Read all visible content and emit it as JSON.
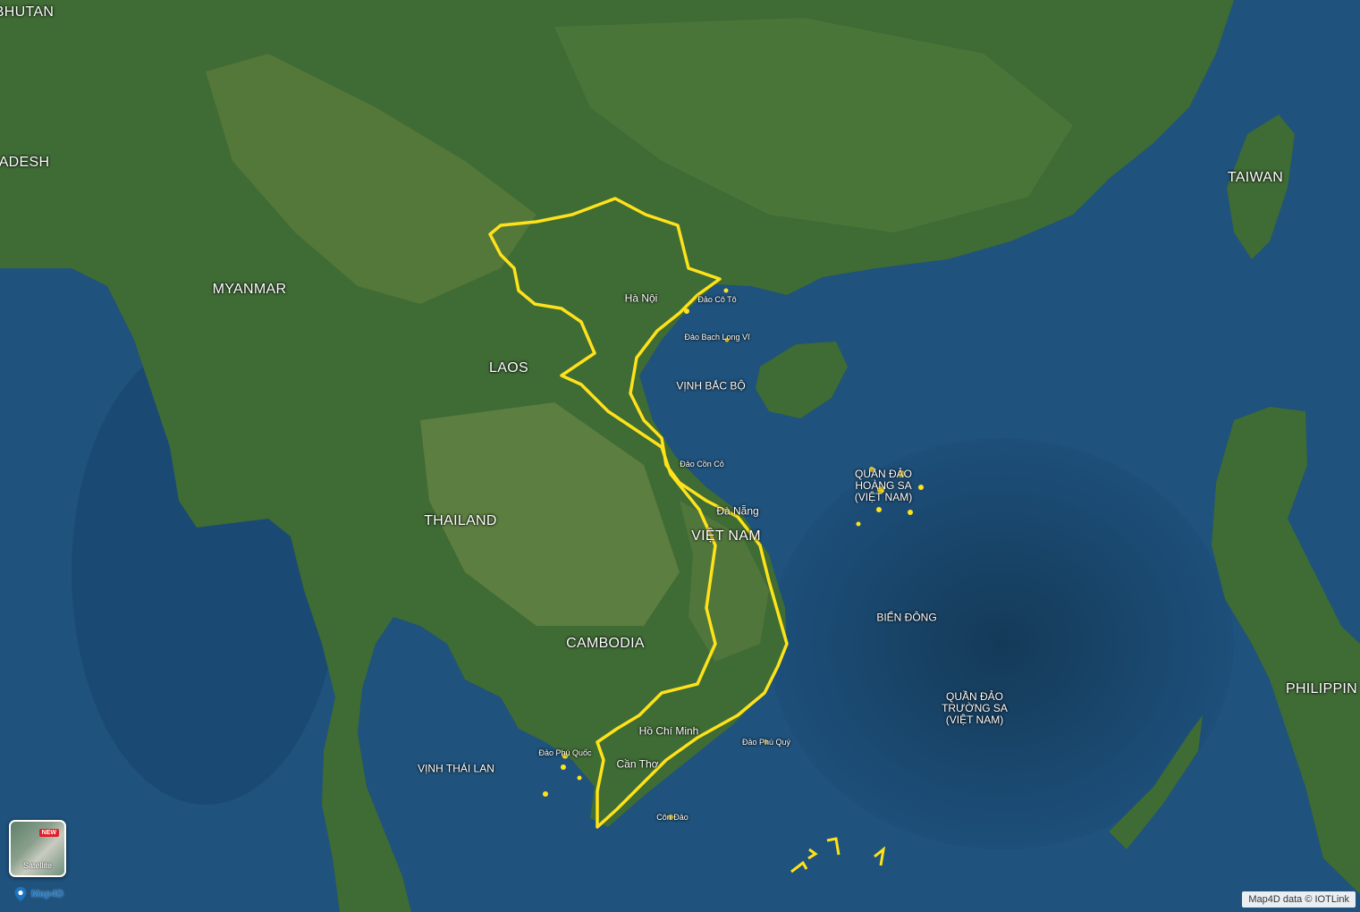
{
  "map": {
    "style": "satellite",
    "colors": {
      "sea": "#1d4f7a",
      "deep_sea": "#15405f",
      "land": "#3f6b35",
      "highland": "#5c7a3e",
      "border_highlight": "#ffe21a"
    },
    "labels": {
      "bhutan": "BHUTAN",
      "bangladesh": "ADESH",
      "myanmar": "MYANMAR",
      "laos": "LAOS",
      "thailand": "THAILAND",
      "cambodia": "CAMBODIA",
      "vietnam": "VIỆT NAM",
      "taiwan": "TAIWAN",
      "philippines": "PHILIPPIN",
      "gulf_tonkin": "VỊNH BẮC BỘ",
      "gulf_thailand": "VỊNH THÁI LAN",
      "east_sea": "BIỂN ĐÔNG",
      "hanoi": "Hà Nội",
      "da_nang": "Đà Nẵng",
      "ho_chi_minh": "Hồ Chí Minh",
      "can_tho": "Cần Thơ",
      "co_to": "Đảo Cô Tô",
      "bach_long_vi": "Đảo Bạch Long Vĩ",
      "con_co": "Đảo Cồn Cỏ",
      "phu_quy": "Đảo Phú Quý",
      "phu_quoc": "Đảo Phú Quốc",
      "con_dao": "Côn Đảo",
      "hoang_sa": "QUẦN ĐẢO\nHOÀNG SA\n(VIỆT NAM)",
      "truong_sa": "QUẦN ĐẢO\nTRƯỜNG SA\n(VIỆT NAM)"
    }
  },
  "controls": {
    "layer_switch": {
      "label": "Satellite",
      "badge": "NEW"
    },
    "logo": "Map4D"
  },
  "attribution": "Map4D data © IOTLink"
}
